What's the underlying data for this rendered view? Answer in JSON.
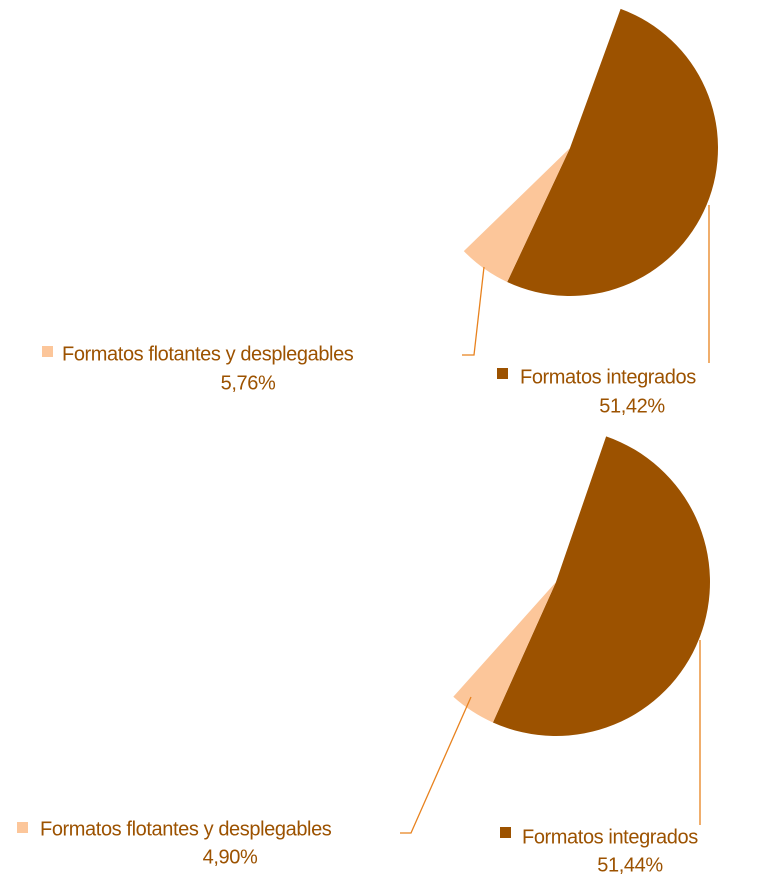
{
  "chart_data": [
    {
      "type": "pie",
      "categories": [
        "Formatos integrados",
        "Formatos flotantes y desplegables"
      ],
      "values": [
        51.42,
        5.76
      ],
      "value_labels": [
        "51,42%",
        "5,76%"
      ],
      "colors": [
        "#9c5200",
        "#fcc69a"
      ]
    },
    {
      "type": "pie",
      "categories": [
        "Formatos integrados",
        "Formatos flotantes y desplegables"
      ],
      "values": [
        51.44,
        4.9
      ],
      "value_labels": [
        "51,44%",
        "4,90%"
      ],
      "colors": [
        "#9c5200",
        "#fcc69a"
      ]
    }
  ]
}
